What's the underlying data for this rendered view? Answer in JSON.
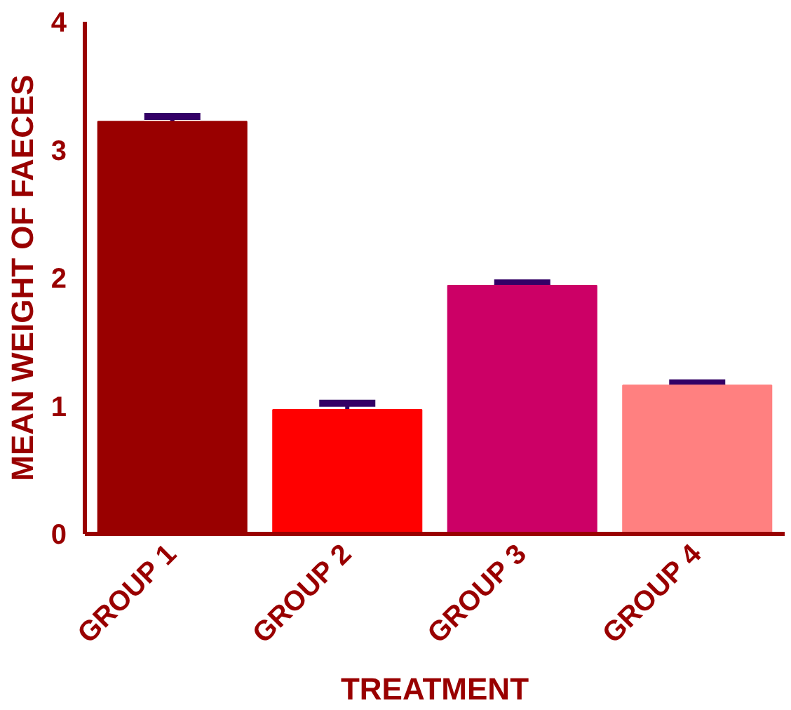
{
  "chart_data": {
    "type": "bar",
    "xlabel": "TREATMENT",
    "ylabel": "MEAN WEIGHT OF FAECES",
    "categories": [
      "GROUP 1",
      "GROUP 2",
      "GROUP 3",
      "GROUP 4"
    ],
    "values": [
      3.22,
      0.97,
      1.94,
      1.16
    ],
    "errors": [
      0.04,
      0.05,
      0.02,
      0.02
    ],
    "colors": [
      "#990000",
      "#ff0000",
      "#cc0066",
      "#ff8080"
    ],
    "ylim": [
      0,
      4
    ],
    "yticks": [
      0,
      1,
      2,
      3,
      4
    ],
    "grid": false
  }
}
